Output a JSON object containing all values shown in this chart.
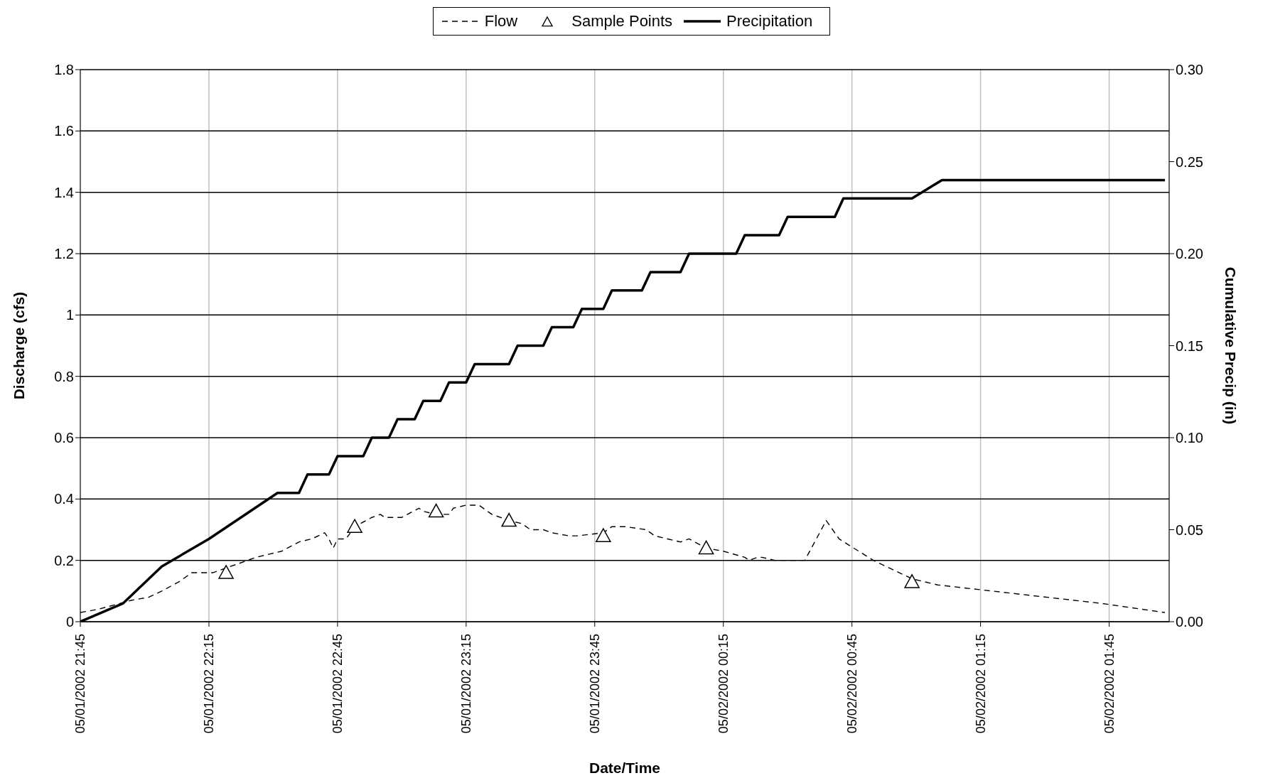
{
  "chart_data": {
    "type": "line",
    "xlabel": "Date/Time",
    "ylabel": "Discharge (cfs)",
    "y2label": "Cumulative Precip (in)",
    "xlim": [
      "2002-05-01T21:45",
      "2002-05-02T01:59"
    ],
    "xticks": [
      {
        "value": "2002-05-01T21:45",
        "label": "05/01/2002 21:45"
      },
      {
        "value": "2002-05-01T22:15",
        "label": "05/01/2002 22:15"
      },
      {
        "value": "2002-05-01T22:45",
        "label": "05/01/2002 22:45"
      },
      {
        "value": "2002-05-01T23:15",
        "label": "05/01/2002 23:15"
      },
      {
        "value": "2002-05-01T23:45",
        "label": "05/01/2002 23:45"
      },
      {
        "value": "2002-05-02T00:15",
        "label": "05/02/2002 00:15"
      },
      {
        "value": "2002-05-02T00:45",
        "label": "05/02/2002 00:45"
      },
      {
        "value": "2002-05-02T01:15",
        "label": "05/02/2002 01:15"
      },
      {
        "value": "2002-05-02T01:45",
        "label": "05/02/2002 01:45"
      }
    ],
    "ylim": [
      0,
      1.8
    ],
    "yticks": [
      0,
      0.2,
      0.4,
      0.6,
      0.8,
      1,
      1.2,
      1.4,
      1.6,
      1.8
    ],
    "y2lim": [
      0,
      0.3
    ],
    "y2ticks": [
      {
        "value": 0,
        "label": "0.00"
      },
      {
        "value": 0.05,
        "label": "0.05"
      },
      {
        "value": 0.1,
        "label": "0.10"
      },
      {
        "value": 0.15,
        "label": "0.15"
      },
      {
        "value": 0.2,
        "label": "0.20"
      },
      {
        "value": 0.25,
        "label": "0.25"
      },
      {
        "value": 0.3,
        "label": "0.30"
      }
    ],
    "grid": true,
    "legend": "top",
    "series": [
      {
        "name": "Flow",
        "color": "#000000",
        "line_style": "dashed",
        "marker": "none",
        "x": [
          "2002-05-01T21:45",
          "2002-05-01T21:49",
          "2002-05-01T21:57",
          "2002-05-01T22:01",
          "2002-05-01T22:04",
          "2002-05-01T22:08",
          "2002-05-01T22:11",
          "2002-05-01T22:16",
          "2002-05-01T22:22",
          "2002-05-01T22:26",
          "2002-05-01T22:32",
          "2002-05-01T22:36",
          "2002-05-01T22:39",
          "2002-05-01T22:42",
          "2002-05-01T22:43",
          "2002-05-01T22:44",
          "2002-05-01T22:45",
          "2002-05-01T22:47",
          "2002-05-01T22:49",
          "2002-05-01T22:53",
          "2002-05-01T22:55",
          "2002-05-01T22:56",
          "2002-05-01T23:00",
          "2002-05-01T23:04",
          "2002-05-01T23:05",
          "2002-05-01T23:08",
          "2002-05-01T23:11",
          "2002-05-01T23:12",
          "2002-05-01T23:15",
          "2002-05-01T23:18",
          "2002-05-01T23:20",
          "2002-05-01T23:21",
          "2002-05-01T23:25",
          "2002-05-01T23:28",
          "2002-05-01T23:30",
          "2002-05-01T23:33",
          "2002-05-01T23:35",
          "2002-05-01T23:39",
          "2002-05-01T23:41",
          "2002-05-01T23:47",
          "2002-05-01T23:49",
          "2002-05-01T23:52",
          "2002-05-01T23:57",
          "2002-05-01T23:59",
          "2002-05-02T00:02",
          "2002-05-02T00:05",
          "2002-05-02T00:07",
          "2002-05-02T00:11",
          "2002-05-02T00:15",
          "2002-05-02T00:20",
          "2002-05-02T00:21",
          "2002-05-02T00:23",
          "2002-05-02T00:24",
          "2002-05-02T00:27",
          "2002-05-02T00:30",
          "2002-05-02T00:34",
          "2002-05-02T00:39",
          "2002-05-02T00:42",
          "2002-05-02T00:50",
          "2002-05-02T00:59",
          "2002-05-02T01:05",
          "2002-05-02T01:43",
          "2002-05-02T01:58"
        ],
        "values": [
          0.03,
          0.04,
          0.07,
          0.08,
          0.1,
          0.13,
          0.16,
          0.16,
          0.19,
          0.21,
          0.23,
          0.26,
          0.27,
          0.29,
          0.27,
          0.24,
          0.27,
          0.27,
          0.31,
          0.34,
          0.35,
          0.34,
          0.34,
          0.37,
          0.36,
          0.35,
          0.35,
          0.37,
          0.38,
          0.38,
          0.36,
          0.35,
          0.33,
          0.32,
          0.3,
          0.3,
          0.29,
          0.28,
          0.28,
          0.29,
          0.31,
          0.31,
          0.3,
          0.28,
          0.27,
          0.26,
          0.27,
          0.24,
          0.23,
          0.21,
          0.2,
          0.21,
          0.21,
          0.2,
          0.2,
          0.2,
          0.33,
          0.27,
          0.2,
          0.14,
          0.12,
          0.06,
          0.03
        ]
      },
      {
        "name": "Sample Points",
        "type": "scatter",
        "color": "#000000",
        "marker": "triangle",
        "x": [
          "2002-05-01T22:19",
          "2002-05-01T22:49",
          "2002-05-01T23:08",
          "2002-05-01T23:25",
          "2002-05-01T23:47",
          "2002-05-02T00:11",
          "2002-05-02T00:59"
        ],
        "values": [
          0.16,
          0.31,
          0.36,
          0.33,
          0.28,
          0.24,
          0.13
        ]
      },
      {
        "name": "Precipitation",
        "axis": "y2",
        "color": "#000000",
        "line_style": "solid",
        "marker": "none",
        "x": [
          "2002-05-01T21:45",
          "2002-05-01T21:55",
          "2002-05-01T22:04",
          "2002-05-01T22:15",
          "2002-05-01T22:31",
          "2002-05-01T22:36",
          "2002-05-01T22:38",
          "2002-05-01T22:43",
          "2002-05-01T22:45",
          "2002-05-01T22:51",
          "2002-05-01T22:53",
          "2002-05-01T22:57",
          "2002-05-01T22:59",
          "2002-05-01T23:03",
          "2002-05-01T23:05",
          "2002-05-01T23:09",
          "2002-05-01T23:11",
          "2002-05-01T23:15",
          "2002-05-01T23:17",
          "2002-05-01T23:25",
          "2002-05-01T23:27",
          "2002-05-01T23:33",
          "2002-05-01T23:35",
          "2002-05-01T23:40",
          "2002-05-01T23:42",
          "2002-05-01T23:47",
          "2002-05-01T23:49",
          "2002-05-01T23:56",
          "2002-05-01T23:58",
          "2002-05-02T00:05",
          "2002-05-02T00:07",
          "2002-05-02T00:18",
          "2002-05-02T00:20",
          "2002-05-02T00:28",
          "2002-05-02T00:30",
          "2002-05-02T00:41",
          "2002-05-02T00:43",
          "2002-05-02T00:59",
          "2002-05-02T01:06",
          "2002-05-02T01:58"
        ],
        "values": [
          0.0,
          0.01,
          0.03,
          0.045,
          0.07,
          0.07,
          0.08,
          0.08,
          0.09,
          0.09,
          0.1,
          0.1,
          0.11,
          0.11,
          0.12,
          0.12,
          0.13,
          0.13,
          0.14,
          0.14,
          0.15,
          0.15,
          0.16,
          0.16,
          0.17,
          0.17,
          0.18,
          0.18,
          0.19,
          0.19,
          0.2,
          0.2,
          0.21,
          0.21,
          0.22,
          0.22,
          0.23,
          0.23,
          0.24,
          0.24
        ]
      }
    ]
  }
}
